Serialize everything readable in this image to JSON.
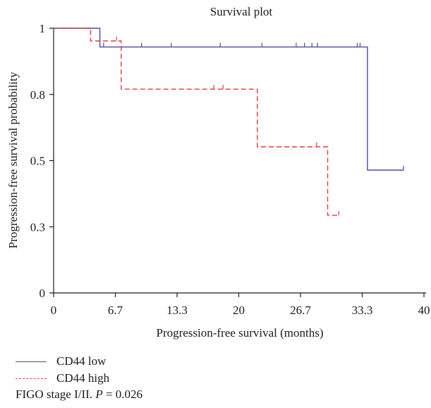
{
  "chart_data": {
    "type": "line",
    "title": "Survival plot",
    "xlabel": "Progression-free survival (months)",
    "ylabel": "Progression-free survival probability",
    "xlim": [
      0,
      40
    ],
    "ylim": [
      0,
      1
    ],
    "x_ticks": [
      "0",
      "6.7",
      "13.3",
      "20",
      "26.7",
      "33.3",
      "40"
    ],
    "x_tick_values": [
      0,
      6.667,
      13.333,
      20,
      26.667,
      33.333,
      40
    ],
    "y_ticks": [
      "0",
      "0.3",
      "0.5",
      "0.8",
      "1"
    ],
    "y_tick_values": [
      0,
      0.25,
      0.5,
      0.75,
      1.0
    ],
    "grid": false,
    "legend_position": "bottom-left",
    "series": [
      {
        "name": "CD44 low",
        "color": "#4b4aa0",
        "dash": "solid",
        "steps": [
          [
            0,
            1.0
          ],
          [
            5.0,
            1.0
          ],
          [
            5.0,
            0.929
          ],
          [
            33.9,
            0.929
          ],
          [
            33.9,
            0.464
          ],
          [
            37.8,
            0.464
          ]
        ],
        "censored": [
          [
            5.4,
            0.929
          ],
          [
            9.5,
            0.929
          ],
          [
            12.7,
            0.929
          ],
          [
            18.0,
            0.929
          ],
          [
            22.5,
            0.929
          ],
          [
            26.2,
            0.929
          ],
          [
            27.1,
            0.929
          ],
          [
            27.9,
            0.929
          ],
          [
            28.5,
            0.929
          ],
          [
            32.8,
            0.929
          ],
          [
            33.1,
            0.929
          ],
          [
            37.8,
            0.464
          ]
        ]
      },
      {
        "name": "CD44 high",
        "color": "#e23a3a",
        "dash": "dashed",
        "steps": [
          [
            0,
            1.0
          ],
          [
            4.0,
            1.0
          ],
          [
            4.0,
            0.952
          ],
          [
            7.3,
            0.952
          ],
          [
            7.3,
            0.77
          ],
          [
            22.0,
            0.77
          ],
          [
            22.0,
            0.552
          ],
          [
            29.6,
            0.552
          ],
          [
            29.6,
            0.293
          ],
          [
            30.8,
            0.293
          ]
        ],
        "censored": [
          [
            6.8,
            0.952
          ],
          [
            17.3,
            0.77
          ],
          [
            18.3,
            0.77
          ],
          [
            28.4,
            0.552
          ],
          [
            30.8,
            0.293
          ]
        ]
      }
    ]
  },
  "legend": {
    "items": [
      {
        "label": "CD44 low"
      },
      {
        "label": "CD44 high"
      }
    ]
  },
  "note": {
    "prefix": "FIGO stage I/II. ",
    "p_label": "P",
    "suffix": " = 0.026"
  }
}
